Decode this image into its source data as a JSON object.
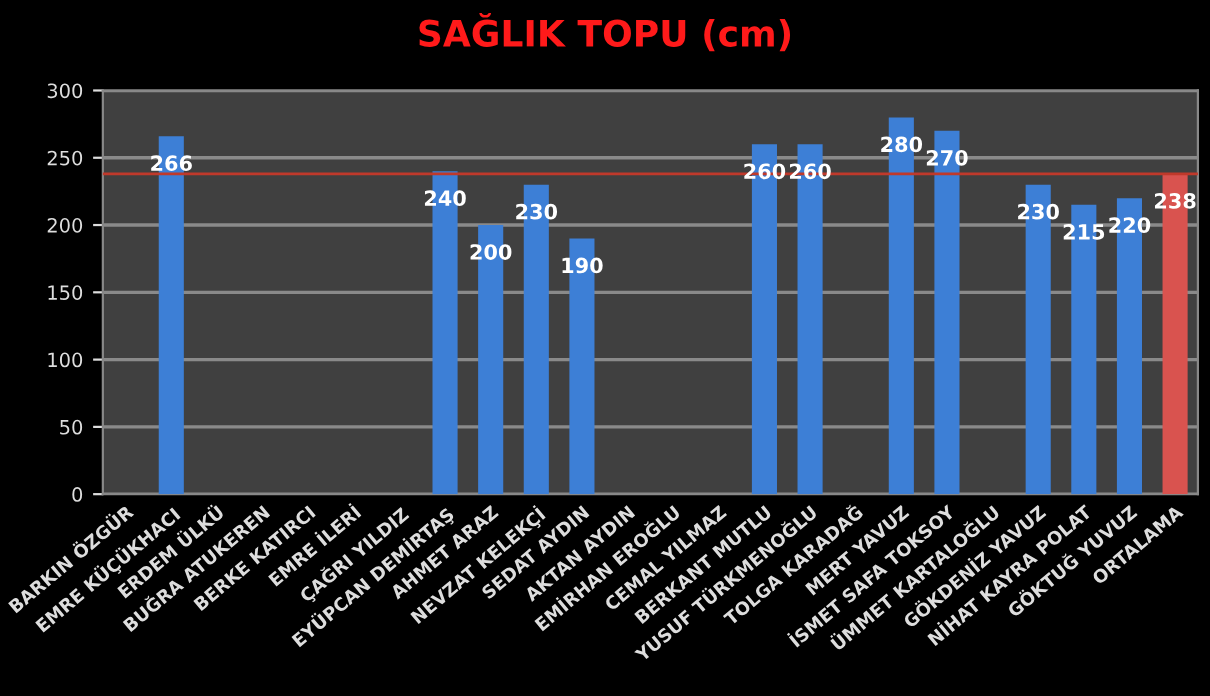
{
  "chart_data": {
    "type": "bar",
    "title": "SAĞLIK TOPU (cm)",
    "categories": [
      "BARKIN ÖZGÜR",
      "EMRE KÜÇÜKHACI",
      "ERDEM ÜLKÜ",
      "BUĞRA ATUKEREN",
      "BERKE KATIRCI",
      "EMRE İLERİ",
      "ÇAĞRI YILDIZ",
      "EYÜPCAN DEMİRTAŞ",
      "AHMET ARAZ",
      "NEVZAT KELEKÇİ",
      "SEDAT AYDIN",
      "AKTAN AYDIN",
      "EMİRHAN EROĞLU",
      "CEMAL YILMAZ",
      "BERKANT MUTLU",
      "YUSUF TÜRKMENOĞLU",
      "TOLGA KARADAĞ",
      "MERT YAVUZ",
      "İSMET SAFA TOKSOY",
      "ÜMMET KARTALOĞLU",
      "GÖKDENİZ YAVUZ",
      "NİHAT KAYRA POLAT",
      "GÖKTUĞ YUVUZ",
      "ORTALAMA"
    ],
    "values": [
      null,
      266,
      null,
      null,
      null,
      null,
      null,
      240,
      200,
      230,
      190,
      null,
      null,
      null,
      260,
      260,
      null,
      280,
      270,
      null,
      230,
      215,
      220,
      238
    ],
    "colors": [
      "#3d7fd6",
      "#3d7fd6",
      "#3d7fd6",
      "#3d7fd6",
      "#3d7fd6",
      "#3d7fd6",
      "#3d7fd6",
      "#3d7fd6",
      "#3d7fd6",
      "#3d7fd6",
      "#3d7fd6",
      "#3d7fd6",
      "#3d7fd6",
      "#3d7fd6",
      "#3d7fd6",
      "#3d7fd6",
      "#3d7fd6",
      "#3d7fd6",
      "#3d7fd6",
      "#3d7fd6",
      "#3d7fd6",
      "#3d7fd6",
      "#3d7fd6",
      "#d9534f"
    ],
    "ylim": [
      0,
      300
    ],
    "yticks": [
      0,
      50,
      100,
      150,
      200,
      250,
      300
    ],
    "grid": "y",
    "data_labels": true,
    "ref_lines": [
      {
        "axis": "y",
        "value": 238,
        "color": "#c0392b"
      }
    ]
  }
}
